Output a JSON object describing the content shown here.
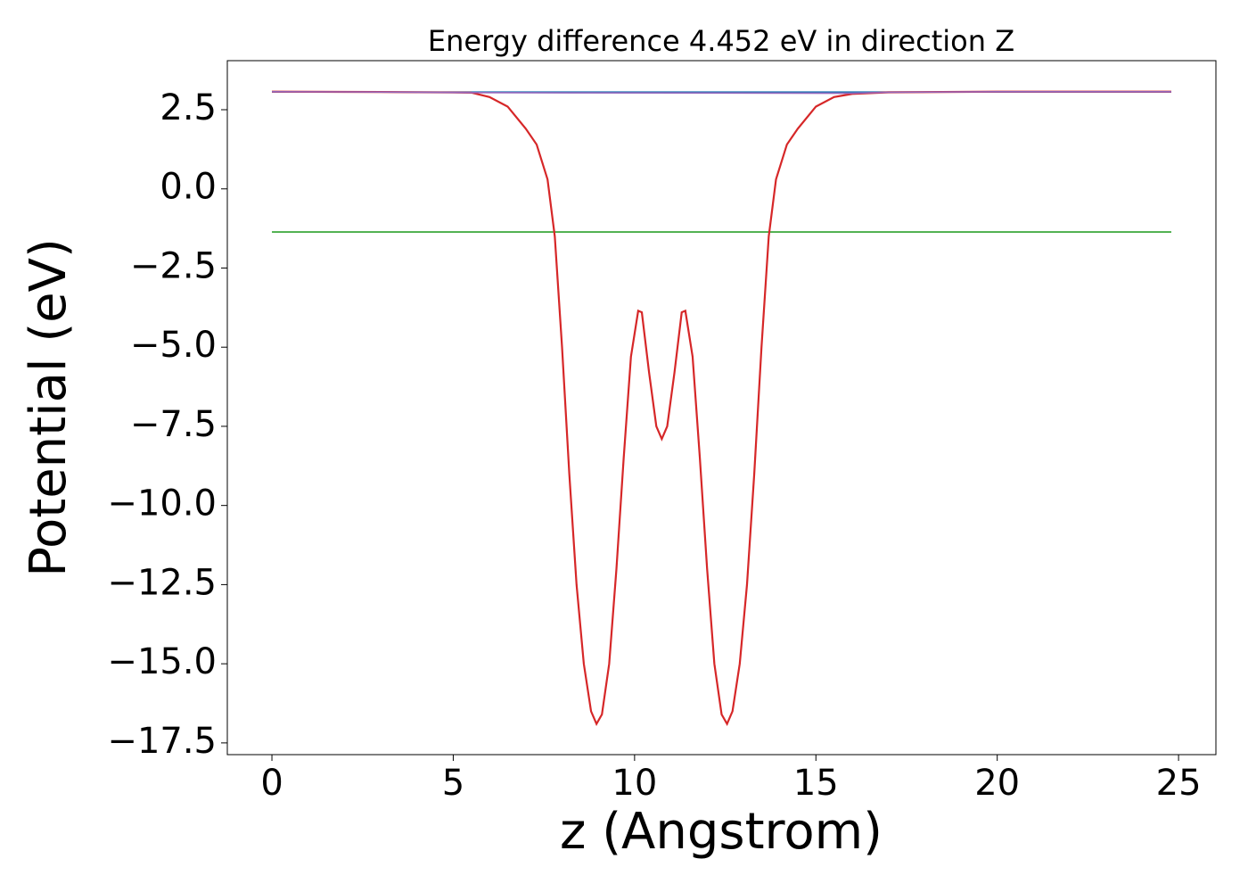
{
  "chart_data": {
    "type": "line",
    "title": "Energy difference 4.452 eV in direction Z",
    "xlabel": "z (Angstrom)",
    "ylabel": "Potential (eV)",
    "xlim": [
      -1.23,
      26.03
    ],
    "ylim": [
      -17.87,
      4.05
    ],
    "xticks": [
      0,
      5,
      10,
      15,
      20,
      25
    ],
    "yticks": [
      {
        "value": 2.5,
        "label": "2.5"
      },
      {
        "value": 0,
        "label": "0.0"
      },
      {
        "value": -2.5,
        "label": "−2.5"
      },
      {
        "value": -5,
        "label": "−5.0"
      },
      {
        "value": -7.5,
        "label": "−7.5"
      },
      {
        "value": -10,
        "label": "−10.0"
      },
      {
        "value": -12.5,
        "label": "−12.5"
      },
      {
        "value": -15,
        "label": "−15.0"
      },
      {
        "value": -17.5,
        "label": "−17.5"
      }
    ],
    "series": [
      {
        "color": "#1f77b4",
        "x": [
          0,
          24.8
        ],
        "values": [
          3.06,
          3.06
        ]
      },
      {
        "color": "#2ca02c",
        "x": [
          0,
          24.8
        ],
        "values": [
          -1.36,
          -1.36
        ]
      },
      {
        "color": "#d62728",
        "x": [
          0,
          3,
          5.5,
          6,
          6.5,
          7,
          7.3,
          7.6,
          7.8,
          8.0,
          8.2,
          8.4,
          8.6,
          8.8,
          8.95,
          9.1,
          9.3,
          9.5,
          9.7,
          9.9,
          10.1,
          10.2,
          10.4,
          10.6,
          10.75,
          10.9,
          11.1,
          11.3,
          11.4,
          11.6,
          11.8,
          12.0,
          12.2,
          12.4,
          12.55,
          12.7,
          12.9,
          13.1,
          13.3,
          13.5,
          13.7,
          13.9,
          14.2,
          14.5,
          15,
          15.5,
          16,
          17,
          20,
          24.8
        ],
        "values": [
          3.07,
          3.06,
          3.04,
          2.9,
          2.6,
          1.9,
          1.4,
          0.3,
          -1.5,
          -5,
          -9,
          -12.5,
          -15,
          -16.5,
          -16.9,
          -16.6,
          -15,
          -12,
          -8.5,
          -5.3,
          -3.85,
          -3.9,
          -5.8,
          -7.5,
          -7.9,
          -7.5,
          -5.8,
          -3.9,
          -3.85,
          -5.3,
          -8.5,
          -12,
          -15,
          -16.6,
          -16.9,
          -16.5,
          -15,
          -12.5,
          -9,
          -5,
          -1.5,
          0.3,
          1.4,
          1.9,
          2.6,
          2.9,
          3.0,
          3.05,
          3.07,
          3.07
        ]
      },
      {
        "color": "#9467bd",
        "x": [
          0,
          3,
          5.5,
          16,
          17,
          20,
          24.8
        ],
        "values": [
          3.07,
          3.06,
          3.04,
          3.02,
          3.05,
          3.07,
          3.07
        ]
      }
    ]
  }
}
